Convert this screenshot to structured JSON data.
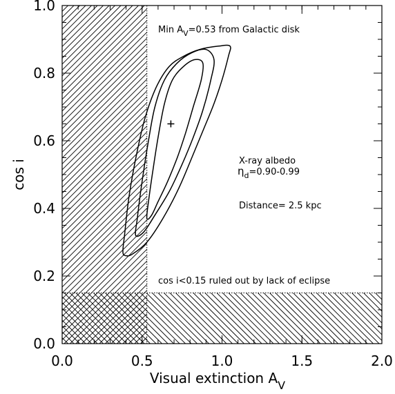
{
  "chart_data": {
    "type": "scatter",
    "xlabel": "Visual extinction A",
    "xlabel_sub": "V",
    "ylabel": "cos i",
    "xlim": [
      0.0,
      2.0
    ],
    "ylim": [
      0.0,
      1.0
    ],
    "x_ticks": [
      "0.0",
      "0.5",
      "1.0",
      "1.5",
      "2.0"
    ],
    "y_ticks": [
      "0.0",
      "0.2",
      "0.4",
      "0.6",
      "0.8",
      "1.0"
    ],
    "x_tick_values": [
      0.0,
      0.5,
      1.0,
      1.5,
      2.0
    ],
    "y_tick_values": [
      0.0,
      0.2,
      0.4,
      0.6,
      0.8,
      1.0
    ],
    "best_fit": {
      "x": 0.68,
      "y": 0.65
    },
    "excluded_regions": [
      {
        "kind": "min_extinction",
        "x_range": [
          0.0,
          0.53
        ],
        "y_range": [
          0.0,
          1.0
        ]
      },
      {
        "kind": "no_eclipse",
        "x_range": [
          0.0,
          2.0
        ],
        "y_range": [
          0.0,
          0.15
        ]
      }
    ],
    "contours": [
      {
        "level": "inner",
        "points": [
          [
            0.53,
            0.37
          ],
          [
            0.54,
            0.42
          ],
          [
            0.57,
            0.52
          ],
          [
            0.6,
            0.61
          ],
          [
            0.64,
            0.71
          ],
          [
            0.69,
            0.78
          ],
          [
            0.76,
            0.82
          ],
          [
            0.83,
            0.84
          ],
          [
            0.88,
            0.83
          ],
          [
            0.87,
            0.78
          ],
          [
            0.82,
            0.7
          ],
          [
            0.77,
            0.62
          ],
          [
            0.72,
            0.55
          ],
          [
            0.66,
            0.48
          ],
          [
            0.6,
            0.42
          ],
          [
            0.56,
            0.38
          ],
          [
            0.53,
            0.37
          ]
        ]
      },
      {
        "level": "middle",
        "points": [
          [
            0.46,
            0.32
          ],
          [
            0.47,
            0.37
          ],
          [
            0.5,
            0.48
          ],
          [
            0.54,
            0.6
          ],
          [
            0.58,
            0.7
          ],
          [
            0.64,
            0.78
          ],
          [
            0.72,
            0.83
          ],
          [
            0.81,
            0.86
          ],
          [
            0.9,
            0.87
          ],
          [
            0.95,
            0.84
          ],
          [
            0.93,
            0.78
          ],
          [
            0.88,
            0.69
          ],
          [
            0.82,
            0.61
          ],
          [
            0.75,
            0.53
          ],
          [
            0.67,
            0.45
          ],
          [
            0.58,
            0.38
          ],
          [
            0.51,
            0.33
          ],
          [
            0.46,
            0.32
          ]
        ]
      },
      {
        "level": "outer",
        "points": [
          [
            0.38,
            0.27
          ],
          [
            0.39,
            0.32
          ],
          [
            0.42,
            0.44
          ],
          [
            0.47,
            0.57
          ],
          [
            0.52,
            0.67
          ],
          [
            0.59,
            0.76
          ],
          [
            0.67,
            0.82
          ],
          [
            0.76,
            0.85
          ],
          [
            0.86,
            0.87
          ],
          [
            0.98,
            0.88
          ],
          [
            1.05,
            0.88
          ],
          [
            1.04,
            0.85
          ],
          [
            1.0,
            0.78
          ],
          [
            0.95,
            0.71
          ],
          [
            0.89,
            0.64
          ],
          [
            0.82,
            0.56
          ],
          [
            0.73,
            0.46
          ],
          [
            0.63,
            0.37
          ],
          [
            0.53,
            0.3
          ],
          [
            0.44,
            0.265
          ],
          [
            0.4,
            0.26
          ],
          [
            0.38,
            0.27
          ]
        ]
      }
    ],
    "annotations": {
      "min_av": "Min A",
      "min_av_sub": "V",
      "min_av_rest": "=0.53 from Galactic disk",
      "albedo_title": "X-ray albedo",
      "eta": "η",
      "eta_sub": "d",
      "eta_rest": "=0.90-0.99",
      "distance": "Distance= 2.5 kpc",
      "eclipse": "cos i<0.15 ruled out by lack of eclipse"
    }
  }
}
